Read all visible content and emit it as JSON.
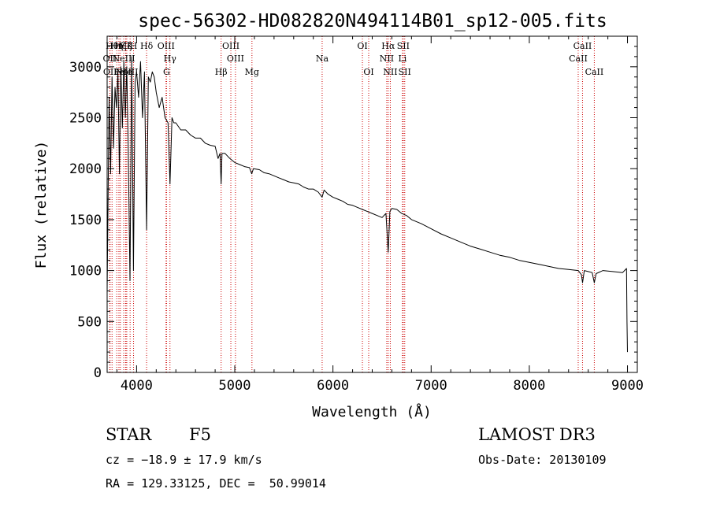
{
  "chart_data": {
    "type": "line",
    "title": "spec-56302-HD082820N494114B01_sp12-005.fits",
    "xlabel": "Wavelength (Å)",
    "ylabel": "Flux (relative)",
    "xlim": [
      3700,
      9100
    ],
    "ylim": [
      0,
      3300
    ],
    "xticks": [
      4000,
      5000,
      6000,
      7000,
      8000,
      9000
    ],
    "yticks": [
      0,
      500,
      1000,
      1500,
      2000,
      2500,
      3000
    ],
    "grid": false,
    "series": [
      {
        "name": "spectrum",
        "x": [
          3700,
          3720,
          3735,
          3750,
          3765,
          3780,
          3795,
          3810,
          3825,
          3840,
          3855,
          3870,
          3885,
          3900,
          3915,
          3933,
          3950,
          3968,
          3985,
          4000,
          4020,
          4040,
          4060,
          4080,
          4102,
          4120,
          4140,
          4160,
          4180,
          4200,
          4230,
          4260,
          4290,
          4320,
          4340,
          4360,
          4380,
          4400,
          4450,
          4500,
          4550,
          4600,
          4650,
          4700,
          4750,
          4800,
          4830,
          4850,
          4861,
          4870,
          4900,
          4950,
          5000,
          5050,
          5100,
          5150,
          5172,
          5190,
          5250,
          5300,
          5350,
          5400,
          5450,
          5500,
          5550,
          5600,
          5650,
          5700,
          5750,
          5800,
          5850,
          5890,
          5910,
          5950,
          6000,
          6050,
          6100,
          6150,
          6200,
          6250,
          6300,
          6350,
          6400,
          6450,
          6500,
          6540,
          6563,
          6580,
          6600,
          6650,
          6700,
          6750,
          6800,
          6900,
          7000,
          7100,
          7200,
          7300,
          7400,
          7500,
          7600,
          7700,
          7800,
          7900,
          8000,
          8100,
          8200,
          8300,
          8400,
          8498,
          8530,
          8542,
          8560,
          8600,
          8640,
          8662,
          8680,
          8750,
          8850,
          8950,
          8990,
          8995,
          9000
        ],
        "y": [
          800,
          2700,
          1950,
          2900,
          2200,
          2800,
          2600,
          2950,
          1950,
          3000,
          2400,
          3050,
          2500,
          3000,
          2200,
          900,
          3100,
          1000,
          2850,
          2950,
          2700,
          3050,
          2500,
          2950,
          1400,
          2900,
          2850,
          2950,
          2900,
          2750,
          2600,
          2700,
          2500,
          2450,
          1850,
          2500,
          2450,
          2450,
          2380,
          2380,
          2330,
          2300,
          2300,
          2250,
          2230,
          2220,
          2100,
          2150,
          1850,
          2150,
          2150,
          2100,
          2060,
          2040,
          2020,
          2010,
          1950,
          2000,
          1990,
          1960,
          1950,
          1930,
          1910,
          1890,
          1870,
          1860,
          1850,
          1820,
          1800,
          1800,
          1770,
          1720,
          1790,
          1750,
          1720,
          1700,
          1680,
          1650,
          1640,
          1620,
          1600,
          1580,
          1560,
          1540,
          1520,
          1560,
          1180,
          1580,
          1610,
          1600,
          1560,
          1540,
          1500,
          1460,
          1410,
          1360,
          1320,
          1280,
          1240,
          1210,
          1180,
          1150,
          1130,
          1100,
          1080,
          1060,
          1040,
          1020,
          1010,
          1000,
          960,
          880,
          1000,
          990,
          980,
          880,
          970,
          1000,
          990,
          980,
          1020,
          500,
          200
        ]
      }
    ],
    "lines": [
      {
        "wl": 3750,
        "label": "Hθ",
        "row": 0
      },
      {
        "wl": 3798,
        "label": "Hη",
        "row": 0
      },
      {
        "wl": 3835,
        "label": "Hζ",
        "row": 0
      },
      {
        "wl": 3889,
        "label": "Hζ",
        "row": 0
      },
      {
        "wl": 3934,
        "label": "K",
        "row": 0
      },
      {
        "wl": 3969,
        "label": "H",
        "row": 0
      },
      {
        "wl": 4102,
        "label": "Hδ",
        "row": 0
      },
      {
        "wl": 4300,
        "label": "OIII",
        "row": 0
      },
      {
        "wl": 4960,
        "label": "OIII",
        "row": 0
      },
      {
        "wl": 6300,
        "label": "OI",
        "row": 0
      },
      {
        "wl": 6563,
        "label": "Hα",
        "row": 0
      },
      {
        "wl": 6716,
        "label": "SII",
        "row": 0
      },
      {
        "wl": 8542,
        "label": "CaII",
        "row": 0
      },
      {
        "wl": 3727,
        "label": "OII",
        "row": 1
      },
      {
        "wl": 3869,
        "label": "NeIII",
        "row": 1
      },
      {
        "wl": 4340,
        "label": "Hγ",
        "row": 1
      },
      {
        "wl": 5007,
        "label": "OIII",
        "row": 1
      },
      {
        "wl": 5890,
        "label": "Na",
        "row": 1
      },
      {
        "wl": 6548,
        "label": "NII",
        "row": 1
      },
      {
        "wl": 6708,
        "label": "Li",
        "row": 1
      },
      {
        "wl": 8498,
        "label": "CaII",
        "row": 1
      },
      {
        "wl": 3730,
        "label": "OII",
        "row": 2
      },
      {
        "wl": 3820,
        "label": "Fe",
        "row": 2
      },
      {
        "wl": 3890,
        "label": "He",
        "row": 2
      },
      {
        "wl": 3900,
        "label": "NeIII",
        "row": 2
      },
      {
        "wl": 4305,
        "label": "G",
        "row": 2
      },
      {
        "wl": 4861,
        "label": "Hβ",
        "row": 2
      },
      {
        "wl": 5175,
        "label": "Mg",
        "row": 2
      },
      {
        "wl": 6364,
        "label": "OI",
        "row": 2
      },
      {
        "wl": 6584,
        "label": "NII",
        "row": 2
      },
      {
        "wl": 6731,
        "label": "SII",
        "row": 2
      },
      {
        "wl": 8662,
        "label": "CaII",
        "row": 2
      }
    ]
  },
  "info": {
    "object_class": "STAR",
    "subclass": "F5",
    "survey": "LAMOST DR3",
    "redshift": "cz = −18.9 ± 17.9 km/s",
    "obs_date": "Obs-Date: 20130109",
    "coords": "RA = 129.33125, DEC =  50.99014"
  },
  "colors": {
    "spectrum": "#000000",
    "line_marker": "#cc0000",
    "axis": "#000000",
    "background": "#ffffff"
  }
}
